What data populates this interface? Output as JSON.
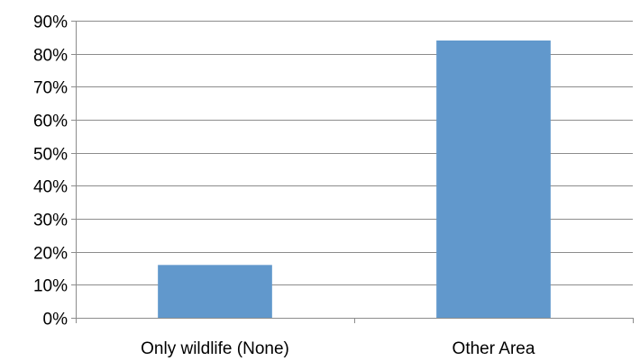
{
  "chart_data": {
    "type": "bar",
    "categories": [
      "Only wildlife (None)",
      "Other Area"
    ],
    "values": [
      16,
      84
    ],
    "value_unit": "percent",
    "ylim": [
      0,
      90
    ],
    "yticks": [
      "0%",
      "10%",
      "20%",
      "30%",
      "40%",
      "50%",
      "60%",
      "70%",
      "80%",
      "90%"
    ],
    "ytick_values": [
      0,
      10,
      20,
      30,
      40,
      50,
      60,
      70,
      80,
      90
    ],
    "grid": true,
    "legend": false,
    "bar_color": "#6198cc",
    "grid_color": "#8c8c8c",
    "title": "",
    "xlabel": "",
    "ylabel": ""
  }
}
